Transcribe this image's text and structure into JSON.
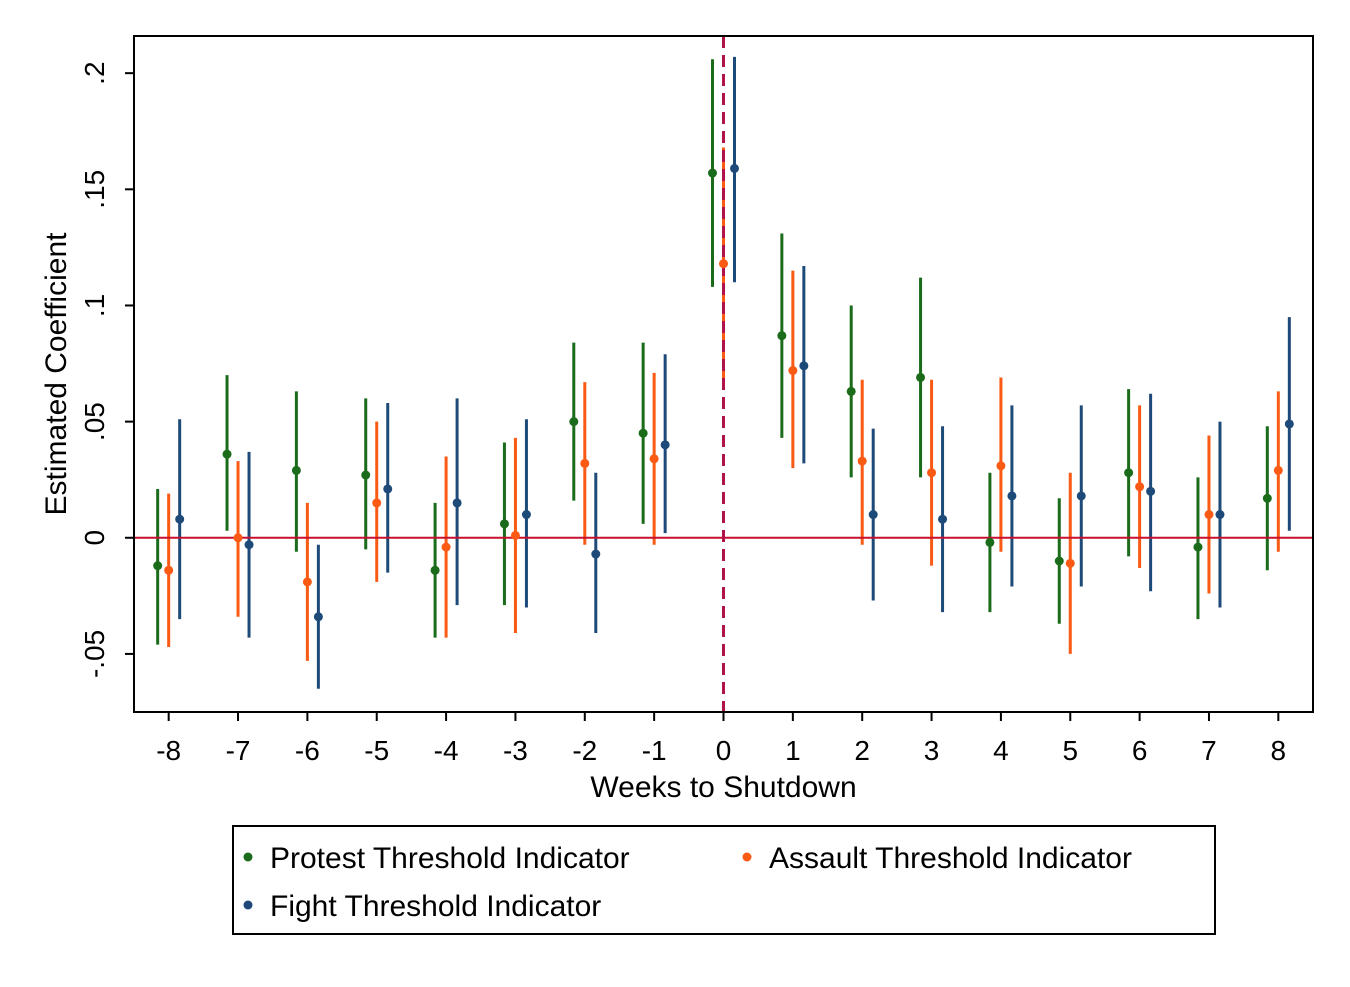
{
  "chart_data": {
    "type": "scatter",
    "subtype": "coefficient plot with confidence intervals",
    "xlabel": "Weeks to Shutdown",
    "ylabel": "Estimated Coefficient",
    "categories": [
      -8,
      -7,
      -6,
      -5,
      -4,
      -3,
      -2,
      -1,
      0,
      1,
      2,
      3,
      4,
      5,
      6,
      7,
      8
    ],
    "x_tick_labels": [
      "-8",
      "-7",
      "-6",
      "-5",
      "-4",
      "-3",
      "-2",
      "-1",
      "0",
      "1",
      "2",
      "3",
      "4",
      "5",
      "6",
      "7",
      "8"
    ],
    "y_ticks": [
      -0.05,
      0,
      0.05,
      0.1,
      0.15,
      0.2
    ],
    "y_tick_labels": [
      "-.05",
      "0",
      ".05",
      ".1",
      ".15",
      ".2"
    ],
    "ylim": [
      -0.075,
      0.216
    ],
    "xlim": [
      -8.5,
      8.5
    ],
    "grid": false,
    "reference_lines": {
      "horizontal_y": 0,
      "horizontal_color": "#c8102e",
      "vertical_x": 0,
      "vertical_color": "#b0124a",
      "vertical_style": "dashed"
    },
    "legend_position": "bottom",
    "series": [
      {
        "name": "Protest Threshold Indicator",
        "color": "#1a6b1a",
        "values": [
          -0.012,
          0.036,
          0.029,
          0.027,
          -0.014,
          0.006,
          0.05,
          0.045,
          0.157,
          0.087,
          0.063,
          0.069,
          -0.002,
          -0.01,
          0.028,
          -0.004,
          0.017
        ],
        "ci_low": [
          -0.046,
          0.003,
          -0.006,
          -0.005,
          -0.043,
          -0.029,
          0.016,
          0.006,
          0.108,
          0.043,
          0.026,
          0.026,
          -0.032,
          -0.037,
          -0.008,
          -0.035,
          -0.014
        ],
        "ci_high": [
          0.021,
          0.07,
          0.063,
          0.06,
          0.015,
          0.041,
          0.084,
          0.084,
          0.206,
          0.131,
          0.1,
          0.112,
          0.028,
          0.017,
          0.064,
          0.026,
          0.048
        ]
      },
      {
        "name": "Assault Threshold Indicator",
        "color": "#fa5a14",
        "values": [
          -0.014,
          0.0,
          -0.019,
          0.015,
          -0.004,
          0.001,
          0.032,
          0.034,
          0.118,
          0.072,
          0.033,
          0.028,
          0.031,
          -0.011,
          0.022,
          0.01,
          0.029
        ],
        "ci_low": [
          -0.047,
          -0.034,
          -0.053,
          -0.019,
          -0.043,
          -0.041,
          -0.003,
          -0.003,
          0.068,
          0.03,
          -0.003,
          -0.012,
          -0.006,
          -0.05,
          -0.013,
          -0.024,
          -0.006
        ],
        "ci_high": [
          0.019,
          0.033,
          0.015,
          0.05,
          0.035,
          0.043,
          0.067,
          0.071,
          0.168,
          0.115,
          0.068,
          0.068,
          0.069,
          0.028,
          0.057,
          0.044,
          0.063
        ]
      },
      {
        "name": "Fight Threshold Indicator",
        "color": "#1d4a78",
        "values": [
          0.008,
          -0.003,
          -0.034,
          0.021,
          0.015,
          0.01,
          -0.007,
          0.04,
          0.159,
          0.074,
          0.01,
          0.008,
          0.018,
          0.018,
          0.02,
          0.01,
          0.049
        ],
        "ci_low": [
          -0.035,
          -0.043,
          -0.065,
          -0.015,
          -0.029,
          -0.03,
          -0.041,
          0.002,
          0.11,
          0.032,
          -0.027,
          -0.032,
          -0.021,
          -0.021,
          -0.023,
          -0.03,
          0.003
        ],
        "ci_high": [
          0.051,
          0.037,
          -0.003,
          0.058,
          0.06,
          0.051,
          0.028,
          0.079,
          0.207,
          0.117,
          0.047,
          0.048,
          0.057,
          0.057,
          0.062,
          0.05,
          0.095
        ]
      }
    ]
  }
}
